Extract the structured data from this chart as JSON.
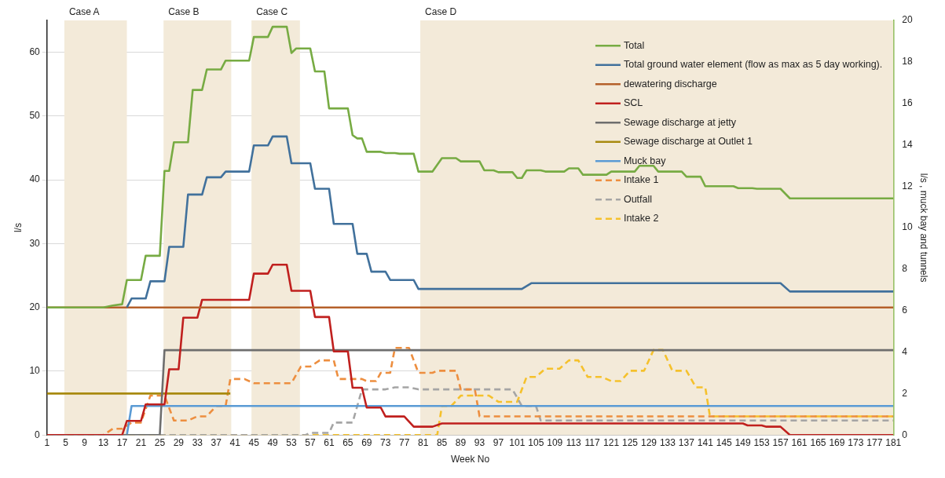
{
  "chart_data": {
    "type": "line",
    "xlabel": "Week No",
    "ylabel": "l/s",
    "y2label": "l/s , muck bay and tunnels",
    "xlim": [
      1,
      181
    ],
    "xticks": [
      1,
      5,
      9,
      13,
      17,
      21,
      25,
      29,
      33,
      37,
      41,
      45,
      49,
      53,
      57,
      61,
      65,
      69,
      73,
      77,
      81,
      85,
      89,
      93,
      97,
      101,
      105,
      109,
      113,
      117,
      121,
      125,
      129,
      133,
      137,
      141,
      145,
      149,
      153,
      157,
      161,
      165,
      169,
      173,
      177,
      181
    ],
    "ylim": [
      0,
      65
    ],
    "yticks": [
      0,
      10,
      20,
      30,
      40,
      50,
      60
    ],
    "y2lim": [
      0,
      20
    ],
    "y2ticks": [
      0,
      2,
      4,
      6,
      8,
      10,
      12,
      14,
      16,
      18,
      20
    ],
    "grid": "y",
    "legend": "top right",
    "marker": "none",
    "bands": [
      {
        "axis": "x",
        "from": 4.7,
        "to": 18,
        "label": "Case A",
        "color": "#f3ead9"
      },
      {
        "axis": "x",
        "from": 25.8,
        "to": 40.2,
        "label": "Case B",
        "color": "#f3ead9"
      },
      {
        "axis": "x",
        "from": 44.5,
        "to": 54.8,
        "label": "Case C",
        "color": "#f3ead9"
      },
      {
        "axis": "x",
        "from": 80.4,
        "to": 181,
        "label": "Case D",
        "color": "#f3ead9"
      }
    ],
    "series": [
      {
        "name": "Total",
        "color": "#77ab43",
        "x": [
          1,
          13,
          15,
          17,
          18,
          21,
          22,
          25,
          26,
          27,
          28,
          31,
          32,
          34,
          35,
          38,
          39,
          44,
          45,
          48,
          49,
          52,
          53,
          54,
          57,
          58,
          60,
          61,
          65,
          66,
          67,
          68,
          69,
          72,
          73,
          75,
          76,
          79,
          80,
          83,
          85,
          88,
          89,
          93,
          94,
          96,
          97,
          100,
          101,
          102,
          103,
          106,
          107,
          111,
          112,
          114,
          115,
          120,
          121,
          126,
          127,
          130,
          131,
          136,
          137,
          140,
          141,
          147,
          148,
          151,
          152,
          157,
          159,
          181
        ],
        "values": [
          20,
          20,
          20.3,
          20.5,
          24.3,
          24.3,
          28.1,
          28.1,
          41.4,
          41.4,
          45.9,
          45.9,
          54.1,
          54.1,
          57.3,
          57.3,
          58.7,
          58.7,
          62.4,
          62.4,
          64,
          64,
          59.9,
          60.6,
          60.6,
          57,
          57,
          51.2,
          51.2,
          47,
          46.5,
          46.5,
          44.4,
          44.4,
          44.2,
          44.2,
          44.1,
          44.1,
          41.3,
          41.3,
          43.4,
          43.4,
          42.9,
          42.9,
          41.5,
          41.5,
          41.2,
          41.2,
          40.3,
          40.3,
          41.5,
          41.5,
          41.3,
          41.3,
          41.8,
          41.8,
          40.8,
          40.8,
          41.3,
          41.3,
          42.2,
          42.2,
          41.3,
          41.3,
          40.5,
          40.5,
          39,
          39,
          38.7,
          38.7,
          38.6,
          38.6,
          37.1,
          37.1
        ]
      },
      {
        "name": "Total ground water element (flow as max as 5 day working).",
        "color": "#41719c",
        "x": [
          18,
          19,
          22,
          23,
          26,
          27,
          30,
          31,
          34,
          35,
          38,
          39,
          44,
          45,
          48,
          49,
          52,
          53,
          57,
          58,
          61,
          62,
          66,
          67,
          69,
          70,
          73,
          74,
          79,
          80,
          102,
          104,
          157,
          159,
          181
        ],
        "values": [
          20,
          21.4,
          21.4,
          24.1,
          24.1,
          29.5,
          29.5,
          37.7,
          37.7,
          40.4,
          40.4,
          41.3,
          41.3,
          45.4,
          45.4,
          46.8,
          46.8,
          42.6,
          42.6,
          38.6,
          38.6,
          33.1,
          33.1,
          28.4,
          28.4,
          25.6,
          25.6,
          24.3,
          24.3,
          22.9,
          22.9,
          23.8,
          23.8,
          22.5,
          22.5
        ]
      },
      {
        "name": "dewatering discharge",
        "color": "#b5602a",
        "x": [
          1,
          181
        ],
        "values": [
          20,
          20
        ]
      },
      {
        "name": "SCL",
        "color": "#c0201e",
        "x": [
          1,
          17,
          18,
          21,
          22,
          26,
          27,
          29,
          30,
          33,
          34,
          44,
          45,
          48,
          49,
          52,
          53,
          57,
          58,
          61,
          62,
          65,
          66,
          68,
          69,
          72,
          73,
          77,
          79,
          83,
          85,
          149,
          150,
          153,
          154,
          157,
          159,
          181
        ],
        "values": [
          0,
          0,
          2.2,
          2.2,
          4.8,
          4.8,
          10.3,
          10.3,
          18.4,
          18.4,
          21.2,
          21.2,
          25.3,
          25.3,
          26.7,
          26.7,
          22.6,
          22.6,
          18.5,
          18.5,
          13.1,
          13.1,
          7.4,
          7.4,
          4.3,
          4.3,
          2.9,
          2.9,
          1.3,
          1.3,
          1.8,
          1.8,
          1.5,
          1.5,
          1.3,
          1.3,
          0,
          0
        ]
      },
      {
        "name": "Sewage discharge at jetty",
        "color": "#6e6e6e",
        "x": [
          1,
          25,
          26,
          181
        ],
        "values": [
          0,
          0,
          13.3,
          13.3
        ]
      },
      {
        "name": "Sewage discharge at Outlet 1",
        "color": "#a88a10",
        "x": [
          1,
          40
        ],
        "values": [
          6.5,
          6.5
        ]
      },
      {
        "name": "Muck bay",
        "color": "#5b9bd5",
        "axis": "y2",
        "x": [
          1,
          18,
          19,
          181
        ],
        "values": [
          0,
          0,
          1.4,
          1.4
        ]
      },
      {
        "name": "Intake 1",
        "color": "#ed8e3f",
        "axis": "y2",
        "line_style": "dashed",
        "x": [
          1,
          13,
          15,
          17,
          19,
          21,
          23,
          26,
          28,
          31,
          33,
          35,
          37,
          39,
          40,
          43,
          45,
          53,
          55,
          57,
          59,
          62,
          63,
          68,
          69,
          71,
          72,
          74,
          75,
          78,
          80,
          83,
          84,
          88,
          89,
          92,
          93,
          181
        ],
        "values": [
          0,
          0,
          0.3,
          0.3,
          0.6,
          0.6,
          1.9,
          1.9,
          0.7,
          0.7,
          0.9,
          0.9,
          1.4,
          1.4,
          2.7,
          2.7,
          2.5,
          2.5,
          3.3,
          3.3,
          3.6,
          3.6,
          2.7,
          2.7,
          2.6,
          2.6,
          3.0,
          3.0,
          4.2,
          4.2,
          3.0,
          3.0,
          3.1,
          3.1,
          2.2,
          2.2,
          0.9,
          0.9
        ]
      },
      {
        "name": "Outfall",
        "color": "#a5a5a5",
        "axis": "y2",
        "line_style": "dashed",
        "x": [
          1,
          56,
          57,
          61,
          62,
          66,
          68,
          73,
          75,
          78,
          80,
          100,
          102,
          105,
          106,
          181
        ],
        "values": [
          0,
          0,
          0.1,
          0.1,
          0.6,
          0.6,
          2.2,
          2.2,
          2.3,
          2.3,
          2.2,
          2.2,
          1.4,
          1.4,
          0.7,
          0.7
        ]
      },
      {
        "name": "Intake 2",
        "color": "#f5c12c",
        "axis": "y2",
        "line_style": "dashed",
        "x": [
          1,
          84,
          85,
          87,
          89,
          95,
          97,
          101,
          103,
          105,
          107,
          110,
          112,
          114,
          116,
          119,
          121,
          123,
          125,
          128,
          130,
          132,
          134,
          137,
          139,
          141,
          142,
          181
        ],
        "values": [
          0,
          0,
          1.4,
          1.4,
          1.9,
          1.9,
          1.6,
          1.6,
          2.8,
          2.8,
          3.2,
          3.2,
          3.6,
          3.6,
          2.8,
          2.8,
          2.6,
          2.6,
          3.1,
          3.1,
          4.1,
          4.1,
          3.1,
          3.1,
          2.3,
          2.3,
          0.9,
          0.9
        ]
      }
    ]
  }
}
